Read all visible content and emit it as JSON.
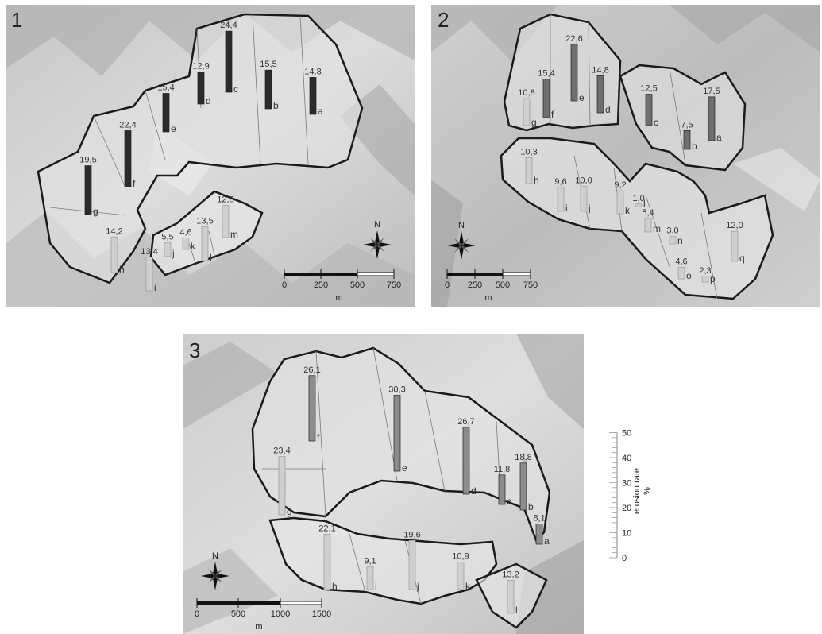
{
  "panels": [
    {
      "number": "1",
      "bars": [
        {
          "letter": "a",
          "value": 14.8,
          "label": "14,8"
        },
        {
          "letter": "b",
          "value": 15.5,
          "label": "15,5"
        },
        {
          "letter": "c",
          "value": 24.4,
          "label": "24,4"
        },
        {
          "letter": "d",
          "value": 12.9,
          "label": "12,9"
        },
        {
          "letter": "e",
          "value": 15.4,
          "label": "15,4"
        },
        {
          "letter": "f",
          "value": 22.4,
          "label": "22,4"
        },
        {
          "letter": "g",
          "value": 19.5,
          "label": "19,5"
        },
        {
          "letter": "h",
          "value": 14.2,
          "label": "14,2"
        },
        {
          "letter": "i",
          "value": 13.4,
          "label": "13,4"
        },
        {
          "letter": "j",
          "value": 5.5,
          "label": "5,5"
        },
        {
          "letter": "k",
          "value": 4.6,
          "label": "4,6"
        },
        {
          "letter": "l",
          "value": 13.5,
          "label": "13,5"
        },
        {
          "letter": "m",
          "value": 12.8,
          "label": "12,8"
        }
      ],
      "scale": {
        "ticks": [
          "0",
          "250",
          "500",
          "750"
        ],
        "unit": "m"
      },
      "north": "N"
    },
    {
      "number": "2",
      "bars": [
        {
          "letter": "a",
          "value": 17.5,
          "label": "17,5"
        },
        {
          "letter": "b",
          "value": 7.5,
          "label": "7,5"
        },
        {
          "letter": "c",
          "value": 12.5,
          "label": "12,5"
        },
        {
          "letter": "d",
          "value": 14.8,
          "label": "14,8"
        },
        {
          "letter": "e",
          "value": 22.6,
          "label": "22,6"
        },
        {
          "letter": "f",
          "value": 15.4,
          "label": "15,4"
        },
        {
          "letter": "g",
          "value": 10.8,
          "label": "10,8"
        },
        {
          "letter": "h",
          "value": 10.3,
          "label": "10,3"
        },
        {
          "letter": "i",
          "value": 9.6,
          "label": "9,6"
        },
        {
          "letter": "j",
          "value": 10.0,
          "label": "10,0"
        },
        {
          "letter": "k",
          "value": 9.2,
          "label": "9,2"
        },
        {
          "letter": "l",
          "value": 1.0,
          "label": "1,0"
        },
        {
          "letter": "m",
          "value": 5.4,
          "label": "5,4"
        },
        {
          "letter": "n",
          "value": 3.0,
          "label": "3,0"
        },
        {
          "letter": "o",
          "value": 4.6,
          "label": "4,6"
        },
        {
          "letter": "p",
          "value": 2.3,
          "label": "2,3"
        },
        {
          "letter": "q",
          "value": 12.0,
          "label": "12,0"
        }
      ],
      "scale": {
        "ticks": [
          "0",
          "250",
          "500",
          "750"
        ],
        "unit": "m"
      },
      "north": "N"
    },
    {
      "number": "3",
      "bars": [
        {
          "letter": "a",
          "value": 8.1,
          "label": "8,1"
        },
        {
          "letter": "b",
          "value": 18.8,
          "label": "18,8"
        },
        {
          "letter": "c",
          "value": 11.8,
          "label": "11,8"
        },
        {
          "letter": "d",
          "value": 26.7,
          "label": "26,7"
        },
        {
          "letter": "e",
          "value": 30.3,
          "label": "30,3"
        },
        {
          "letter": "f",
          "value": 26.1,
          "label": "26,1"
        },
        {
          "letter": "g",
          "value": 23.4,
          "label": "23,4"
        },
        {
          "letter": "h",
          "value": 22.1,
          "label": "22,1"
        },
        {
          "letter": "i",
          "value": 9.1,
          "label": "9,1"
        },
        {
          "letter": "j",
          "value": 19.6,
          "label": "19,6"
        },
        {
          "letter": "k",
          "value": 10.9,
          "label": "10,9"
        },
        {
          "letter": "l",
          "value": 13.2,
          "label": "13,2"
        }
      ],
      "scale": {
        "ticks": [
          "0",
          "500",
          "1000",
          "1500"
        ],
        "unit": "m"
      },
      "north": "N"
    }
  ],
  "legend": {
    "title": "erosion rate",
    "unit": "%",
    "ticks": [
      "0",
      "10",
      "20",
      "30",
      "40",
      "50"
    ],
    "range": [
      0,
      50
    ]
  },
  "colors": {
    "panel1_bars": "#2b2b2b",
    "panel2_bars": "#6e6e6e",
    "panel3_bars": "#8c8c8c",
    "lower_bars": "#cfcfcf",
    "watershed_outline": "#1a1a1a"
  }
}
